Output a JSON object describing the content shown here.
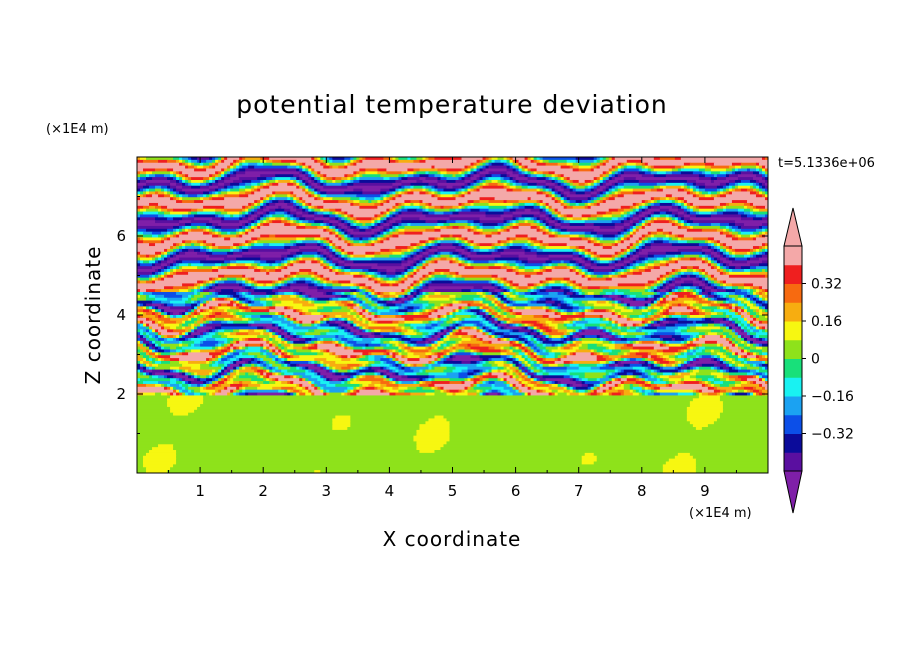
{
  "chart_data": {
    "type": "heatmap",
    "title": "potential temperature deviation",
    "xlabel": "X coordinate",
    "ylabel": "Z coordinate",
    "x_unit": "(×1E4 m)",
    "y_unit": "(×1E4 m)",
    "time_label": "t=5.1336e+06",
    "xlim": [
      0,
      10
    ],
    "ylim": [
      0,
      8
    ],
    "x_ticks": [
      "1",
      "2",
      "3",
      "4",
      "5",
      "6",
      "7",
      "8",
      "9"
    ],
    "y_ticks": [
      "2",
      "4",
      "6"
    ],
    "colorbar": {
      "levels": [
        -0.48,
        -0.4,
        -0.32,
        -0.24,
        -0.16,
        -0.08,
        0,
        0.08,
        0.16,
        0.24,
        0.32,
        0.4,
        0.48
      ],
      "colors": [
        "#7f1fa8",
        "#5a0fa0",
        "#0b0b9a",
        "#0c4fe8",
        "#1ba2f2",
        "#19f2f2",
        "#18e07a",
        "#8ee21b",
        "#f7f711",
        "#f7ad10",
        "#f76a10",
        "#ef1f1f",
        "#f4a8a8",
        "#f4a8a8"
      ],
      "tick_labels": [
        "0.32",
        "0.16",
        "0",
        "−0.16",
        "−0.32"
      ],
      "tick_values": [
        0.32,
        0.16,
        0,
        -0.16,
        -0.32
      ]
    }
  }
}
